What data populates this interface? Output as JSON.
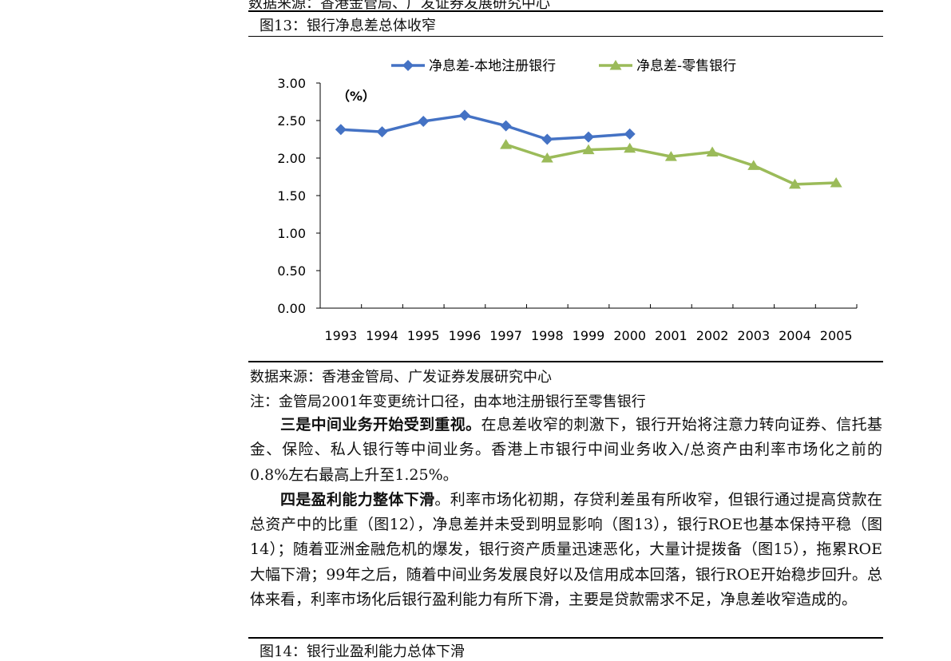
{
  "top_cut_text": "数据来源：香港金管局、广发证券发展研究中心",
  "figure": {
    "title": "图13：银行净息差总体收窄",
    "source": "数据来源：香港金管局、广发证券发展研究中心",
    "note": "注：金管局2001年变更统计口径，由本地注册银行至零售银行"
  },
  "chart_data": {
    "type": "line",
    "unit_label": "（%）",
    "x": [
      "1993",
      "1994",
      "1995",
      "1996",
      "1997",
      "1998",
      "1999",
      "2000",
      "2001",
      "2002",
      "2003",
      "2004",
      "2005"
    ],
    "ylim": [
      0,
      3
    ],
    "yticks": [
      "0.00",
      "0.50",
      "1.00",
      "1.50",
      "2.00",
      "2.50",
      "3.00"
    ],
    "grid": false,
    "legend_position": "top",
    "series": [
      {
        "name": "净息差-本地注册银行",
        "color": "#4472C4",
        "marker": "diamond",
        "values": [
          2.38,
          2.35,
          2.49,
          2.57,
          2.43,
          2.25,
          2.28,
          2.32,
          null,
          null,
          null,
          null,
          null
        ]
      },
      {
        "name": "净息差-零售银行",
        "color": "#9BBB59",
        "marker": "triangle",
        "values": [
          null,
          null,
          null,
          null,
          2.18,
          2.0,
          2.11,
          2.13,
          2.02,
          2.08,
          1.9,
          1.65,
          1.67
        ]
      }
    ]
  },
  "paragraphs": [
    {
      "bold": "三是中间业务开始受到重视。",
      "text": "在息差收窄的刺激下，银行开始将注意力转向证券、信托基金、保险、私人银行等中间业务。香港上市银行中间业务收入/总资产由利率市场化之前的0.8%左右最高上升至1.25%。"
    },
    {
      "bold": "四是盈利能力整体下滑",
      "text": "。利率市场化初期，存贷利差虽有所收窄，但银行通过提高贷款在总资产中的比重（图12），净息差并未受到明显影响（图13），银行ROE也基本保持平稳（图14）；随着亚洲金融危机的爆发，银行资产质量迅速恶化，大量计提拨备（图15），拖累ROE大幅下滑；99年之后，随着中间业务发展良好以及信用成本回落，银行ROE开始稳步回升。总体来看，利率市场化后银行盈利能力有所下滑，主要是贷款需求不足，净息差收窄造成的。"
    }
  ],
  "next_figure_title": "图14：银行业盈利能力总体下滑"
}
